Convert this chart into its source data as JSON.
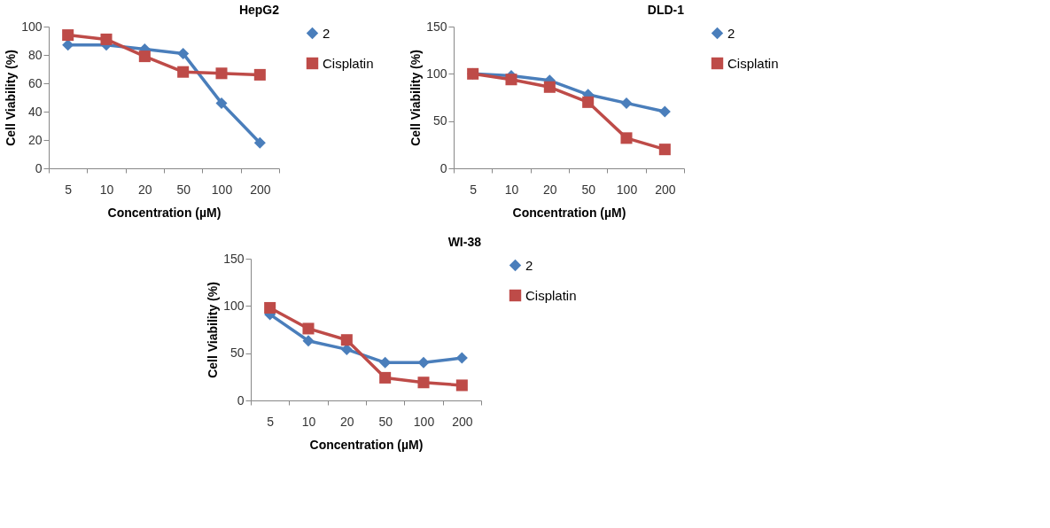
{
  "chart_data": [
    {
      "type": "line",
      "title": "HepG2",
      "xlabel": "Concentration (µM)",
      "ylabel": "Cell  Viability (%)",
      "categories": [
        "5",
        "10",
        "20",
        "50",
        "100",
        "200"
      ],
      "ylim": [
        0,
        100
      ],
      "yticks": [
        0,
        20,
        40,
        60,
        80,
        100
      ],
      "grid": false,
      "legend": "right",
      "series": [
        {
          "name": "2",
          "color": "#4a7ebb",
          "marker": "diamond",
          "values": [
            87,
            87,
            84,
            81,
            46,
            18
          ]
        },
        {
          "name": "Cisplatin",
          "color": "#be4b48",
          "marker": "square",
          "values": [
            94,
            91,
            79,
            68,
            67,
            66
          ]
        }
      ]
    },
    {
      "type": "line",
      "title": "DLD-1",
      "xlabel": "Concentration (µM)",
      "ylabel": "Cell  Viability (%)",
      "categories": [
        "5",
        "10",
        "20",
        "50",
        "100",
        "200"
      ],
      "ylim": [
        0,
        150
      ],
      "yticks": [
        0,
        50,
        100,
        150
      ],
      "grid": false,
      "legend": "right",
      "series": [
        {
          "name": "2",
          "color": "#4a7ebb",
          "marker": "diamond",
          "values": [
            100,
            98,
            93,
            78,
            69,
            60
          ]
        },
        {
          "name": "Cisplatin",
          "color": "#be4b48",
          "marker": "square",
          "values": [
            100,
            94,
            86,
            70,
            32,
            20
          ]
        }
      ]
    },
    {
      "type": "line",
      "title": "WI-38",
      "xlabel": "Concentration (µM)",
      "ylabel": "Cell  Viability (%)",
      "categories": [
        "5",
        "10",
        "20",
        "50",
        "100",
        "200"
      ],
      "ylim": [
        0,
        150
      ],
      "yticks": [
        0,
        50,
        100,
        150
      ],
      "grid": false,
      "legend": "right",
      "series": [
        {
          "name": "2",
          "color": "#4a7ebb",
          "marker": "diamond",
          "values": [
            91,
            63,
            54,
            40,
            40,
            45
          ]
        },
        {
          "name": "Cisplatin",
          "color": "#be4b48",
          "marker": "square",
          "values": [
            98,
            76,
            64,
            24,
            19,
            16
          ]
        }
      ]
    }
  ]
}
